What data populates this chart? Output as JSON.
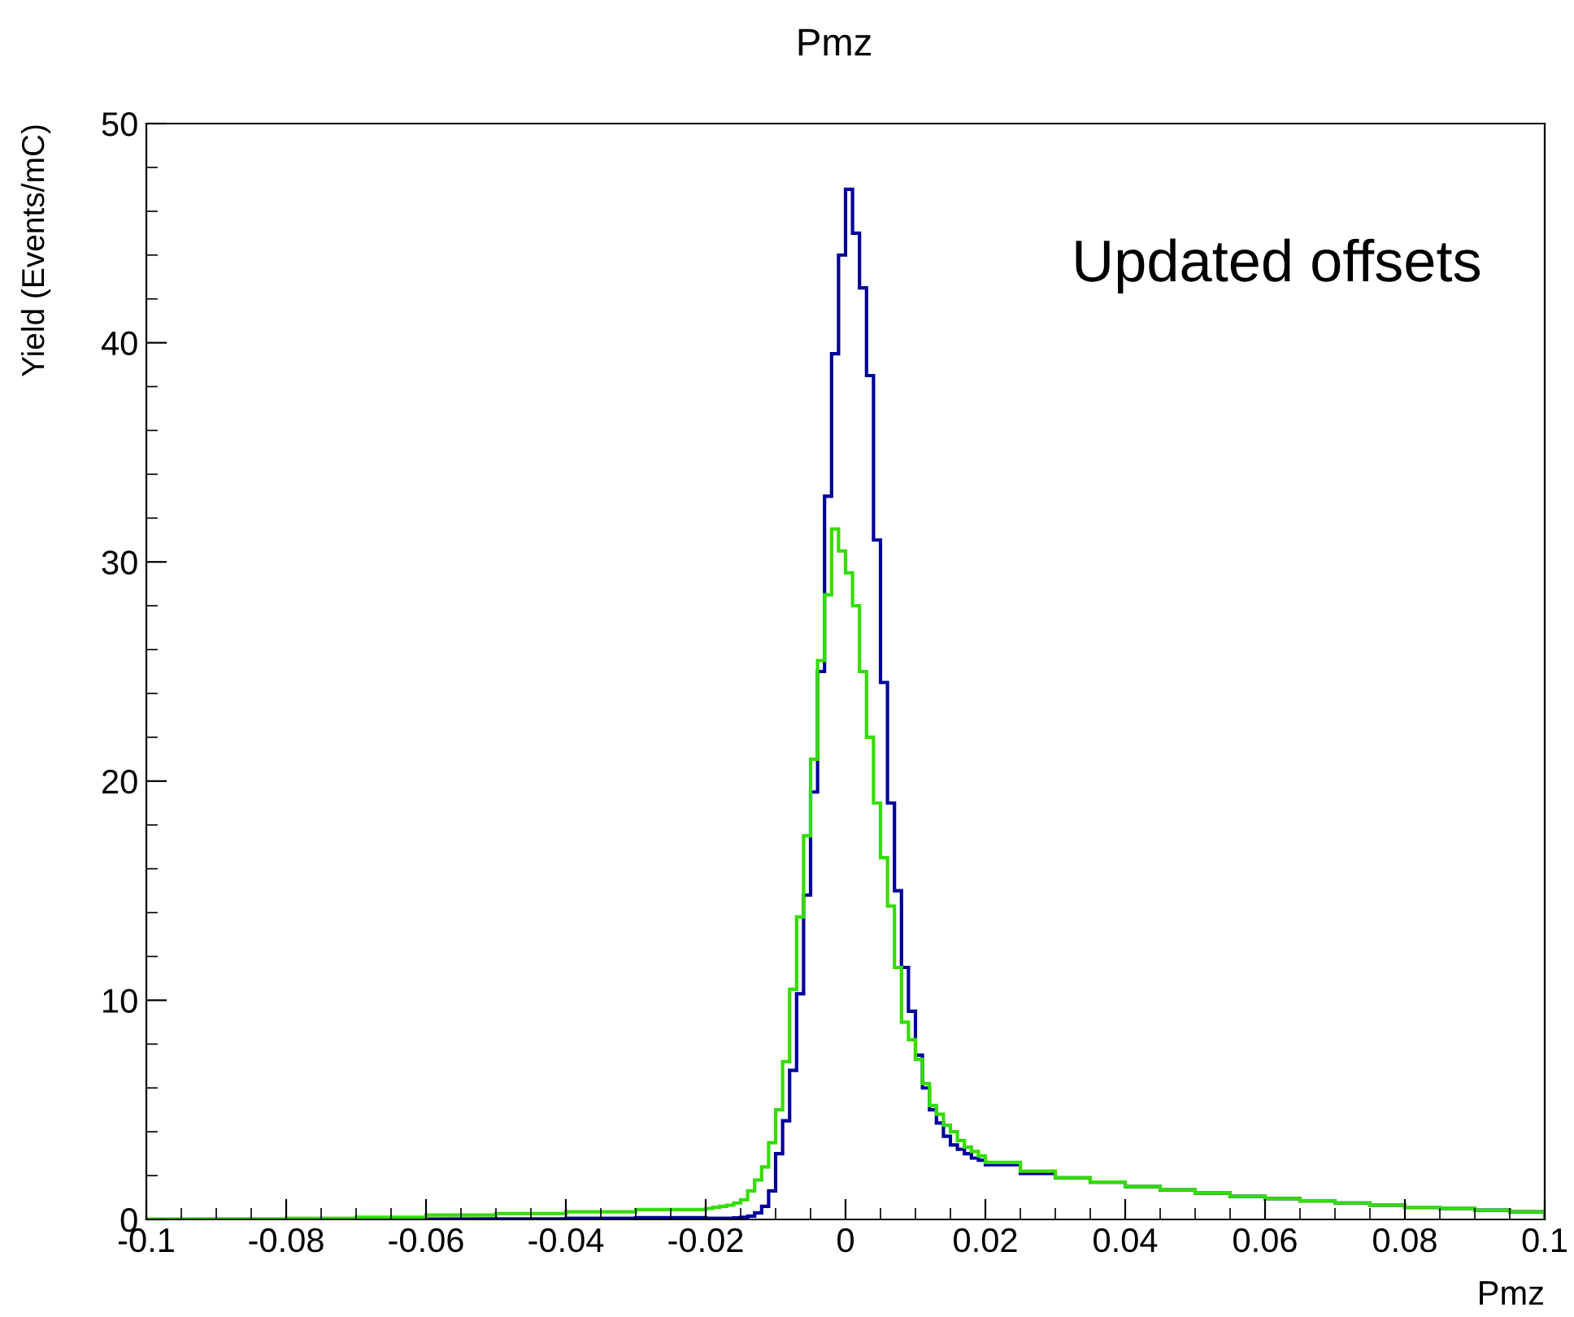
{
  "chart_data": {
    "type": "histogram",
    "title": "Pmz",
    "xlabel": "Pmz",
    "ylabel": "Yield (Events/mC)",
    "annotations": [
      "Updated offsets"
    ],
    "bins": [
      -0.1,
      -0.09,
      -0.08,
      -0.07,
      -0.06,
      -0.05,
      -0.04,
      -0.03,
      -0.02,
      -0.019,
      -0.018,
      -0.017,
      -0.016,
      -0.015,
      -0.014,
      -0.013,
      -0.012,
      -0.011,
      -0.01,
      -0.009,
      -0.008,
      -0.007,
      -0.006,
      -0.005,
      -0.004,
      -0.003,
      -0.002,
      -0.001,
      0,
      0.001,
      0.002,
      0.003,
      0.004,
      0.005,
      0.006,
      0.007,
      0.008,
      0.009,
      0.01,
      0.011,
      0.012,
      0.013,
      0.014,
      0.015,
      0.016,
      0.017,
      0.018,
      0.019,
      0.02,
      0.025,
      0.03,
      0.035,
      0.04,
      0.045,
      0.05,
      0.055,
      0.06,
      0.065,
      0.07,
      0.075,
      0.08,
      0.085,
      0.09,
      0.095,
      0.1
    ],
    "series": [
      {
        "color": "#000099",
        "values": [
          0,
          0,
          0,
          0,
          0.02,
          0.03,
          0.05,
          0.08,
          0.05,
          0.05,
          0.05,
          0.05,
          0.07,
          0.1,
          0.15,
          0.3,
          0.6,
          1.3,
          3.0,
          4.5,
          6.8,
          10.3,
          14.8,
          19.5,
          25,
          33,
          39.5,
          44,
          47,
          45,
          42.5,
          38.5,
          31,
          24.5,
          19,
          15,
          11.5,
          9.5,
          7.5,
          6,
          5,
          4.4,
          3.8,
          3.4,
          3.2,
          3.0,
          2.8,
          2.7,
          2.5,
          2.1,
          1.9,
          1.7,
          1.5,
          1.35,
          1.2,
          1.05,
          0.95,
          0.85,
          0.75,
          0.65,
          0.55,
          0.5,
          0.42,
          0.35
        ]
      },
      {
        "color": "#33dd00",
        "values": [
          0.02,
          0.03,
          0.05,
          0.1,
          0.2,
          0.27,
          0.35,
          0.45,
          0.5,
          0.55,
          0.6,
          0.65,
          0.75,
          0.9,
          1.3,
          1.8,
          2.4,
          3.5,
          5.0,
          7.2,
          10.5,
          13.8,
          17.5,
          21,
          25.5,
          28.5,
          31.5,
          30.5,
          29.5,
          28,
          25,
          22,
          19,
          16.5,
          14.3,
          11.5,
          9,
          8.2,
          7.3,
          6.2,
          5.2,
          4.8,
          4.3,
          4.0,
          3.6,
          3.3,
          3.1,
          2.9,
          2.6,
          2.2,
          1.9,
          1.7,
          1.5,
          1.35,
          1.2,
          1.05,
          0.95,
          0.85,
          0.75,
          0.65,
          0.55,
          0.5,
          0.42,
          0.35
        ]
      }
    ],
    "xlim": [
      -0.1,
      0.1
    ],
    "xticks": [
      -0.1,
      -0.08,
      -0.06,
      -0.04,
      -0.02,
      0,
      0.02,
      0.04,
      0.06,
      0.08,
      0.1
    ],
    "ylim": [
      0,
      50
    ],
    "yticks": [
      0,
      10,
      20,
      30,
      40,
      50
    ],
    "grid": false,
    "legend": false
  }
}
